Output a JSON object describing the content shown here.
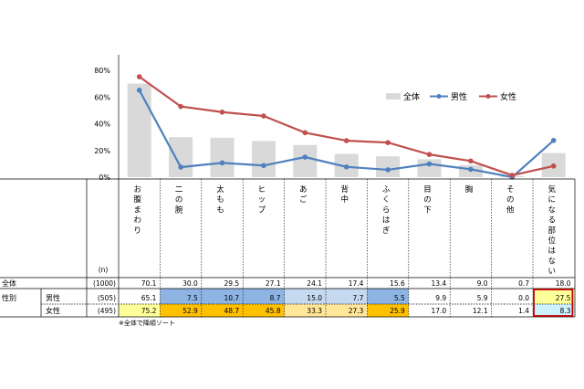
{
  "chart_data": {
    "type": "bar+line",
    "ylim": [
      0,
      80
    ],
    "yticks": [
      "0%",
      "20%",
      "40%",
      "60%",
      "80%"
    ],
    "legend_position": "right",
    "categories": [
      "お腹まわり",
      "二の腕",
      "太もも",
      "ヒップ",
      "あご",
      "背中",
      "ふくらはぎ",
      "目の下",
      "胸",
      "その他",
      "気になる部位はない"
    ],
    "series": [
      {
        "name": "全体",
        "kind": "bar",
        "color": "#d9d9d9",
        "values": [
          70.1,
          30.0,
          29.5,
          27.1,
          24.1,
          17.4,
          15.6,
          13.4,
          9.0,
          0.7,
          18.0
        ]
      },
      {
        "name": "男性",
        "kind": "line",
        "color": "#4f81bd",
        "values": [
          65.1,
          7.5,
          10.7,
          8.7,
          15.0,
          7.7,
          5.5,
          9.9,
          5.9,
          0.0,
          27.5
        ]
      },
      {
        "name": "女性",
        "kind": "line",
        "color": "#c0504d",
        "values": [
          75.2,
          52.9,
          48.7,
          45.8,
          33.3,
          27.3,
          25.9,
          17.0,
          12.1,
          1.4,
          8.3
        ]
      }
    ]
  },
  "table": {
    "n_header": "(n)",
    "sex_label": "性別",
    "rows": [
      {
        "label": "全体",
        "n": "(1000)",
        "values": [
          "70.1",
          "30.0",
          "29.5",
          "27.1",
          "24.1",
          "17.4",
          "15.6",
          "13.4",
          "9.0",
          "0.7",
          "18.0"
        ]
      },
      {
        "label": "男性",
        "n": "(505)",
        "values": [
          "65.1",
          "7.5",
          "10.7",
          "8.7",
          "15.0",
          "7.7",
          "5.5",
          "9.9",
          "5.9",
          "0.0",
          "27.5"
        ]
      },
      {
        "label": "女性",
        "n": "(495)",
        "values": [
          "75.2",
          "52.9",
          "48.7",
          "45.8",
          "33.3",
          "27.3",
          "25.9",
          "17.0",
          "12.1",
          "1.4",
          "8.3"
        ]
      }
    ],
    "highlight_colors": {
      "male_low": "#8db4e2",
      "male_mid": "#c5d9f1",
      "female_high": "#ffc000",
      "female_mid": "#ffe699",
      "female_low": "#ffff99",
      "male_high": "#ffff99",
      "male_high2": "#ccf2ff",
      "border": "#c00000"
    }
  },
  "footnote": "※全体で降順ソート"
}
